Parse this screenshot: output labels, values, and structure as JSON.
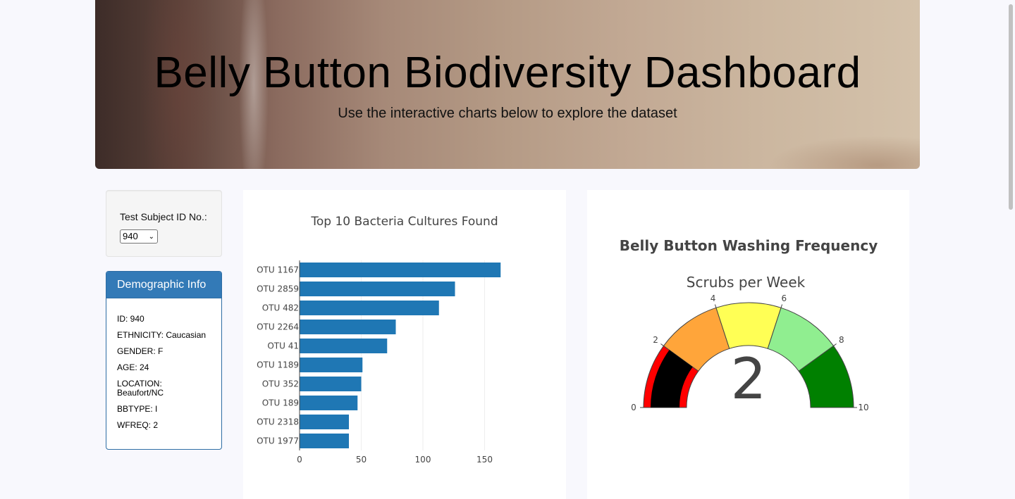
{
  "header": {
    "title": "Belly Button Biodiversity Dashboard",
    "subtitle": "Use the interactive charts below to explore the dataset"
  },
  "selector": {
    "label": "Test Subject ID No.:",
    "value": "940"
  },
  "demographics": {
    "heading": "Demographic Info",
    "lines": [
      "ID: 940",
      "ETHNICITY: Caucasian",
      "GENDER: F",
      "AGE: 24",
      "LOCATION: Beaufort/NC",
      "BBTYPE: I",
      "WFREQ: 2"
    ]
  },
  "chart_data": [
    {
      "type": "bar",
      "orientation": "horizontal",
      "title": "Top 10 Bacteria Cultures Found",
      "categories": [
        "OTU 1167",
        "OTU 2859",
        "OTU 482",
        "OTU 2264",
        "OTU 41",
        "OTU 1189",
        "OTU 352",
        "OTU 189",
        "OTU 2318",
        "OTU 1977"
      ],
      "values": [
        163,
        126,
        113,
        78,
        71,
        51,
        50,
        47,
        40,
        40
      ],
      "xticks": [
        0,
        50,
        100,
        150
      ],
      "xlim": [
        0,
        180
      ],
      "grid": true,
      "color": "#1f77b4"
    },
    {
      "type": "gauge",
      "title": "Belly Button Washing Frequency",
      "subtitle": "Scrubs per Week",
      "value": 2,
      "range": [
        0,
        10
      ],
      "ticks": [
        0,
        2,
        4,
        6,
        8,
        10
      ],
      "bar_color": "#000000",
      "steps": [
        {
          "from": 0,
          "to": 2,
          "color": "#ff0000"
        },
        {
          "from": 2,
          "to": 4,
          "color": "#ffa53a"
        },
        {
          "from": 4,
          "to": 6,
          "color": "#ffff55"
        },
        {
          "from": 6,
          "to": 8,
          "color": "#90ee90"
        },
        {
          "from": 8,
          "to": 10,
          "color": "#008000"
        }
      ]
    }
  ]
}
